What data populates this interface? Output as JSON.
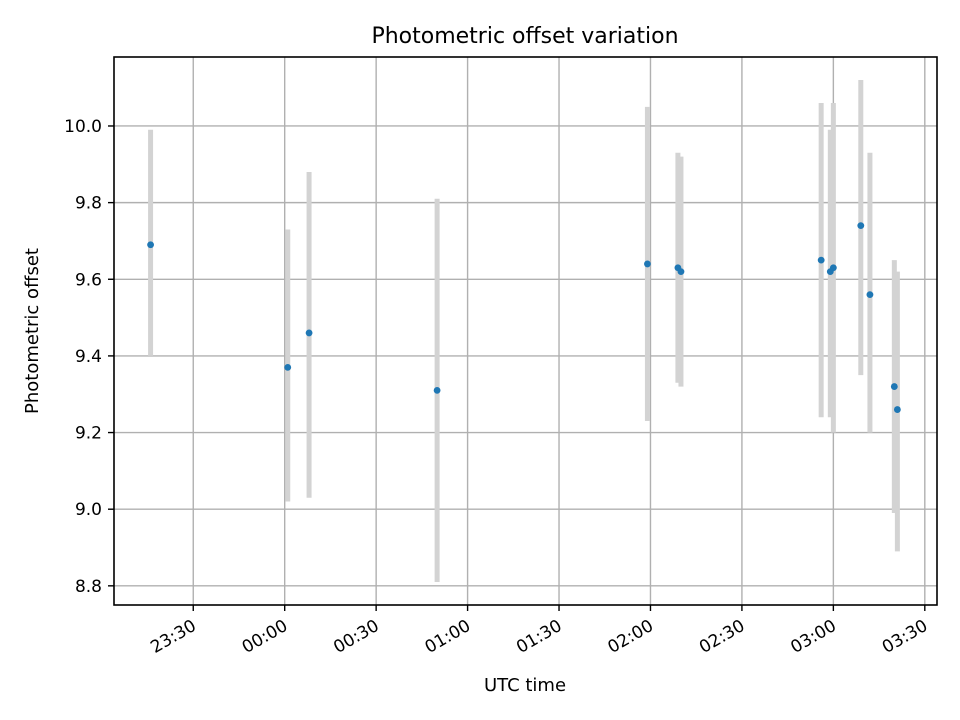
{
  "chart_data": {
    "type": "scatter",
    "title": "Photometric offset variation",
    "xlabel": "UTC time",
    "ylabel": "Photometric offset",
    "x_ticks": [
      "23:30",
      "00:00",
      "00:30",
      "01:00",
      "01:30",
      "02:00",
      "02:30",
      "03:00",
      "03:30"
    ],
    "y_ticks": [
      "8.8",
      "9.0",
      "9.2",
      "9.4",
      "9.6",
      "9.8",
      "10.0"
    ],
    "xlim": [
      "23:04",
      "03:34"
    ],
    "ylim": [
      8.75,
      10.18
    ],
    "grid": true,
    "colors": {
      "points": "#1f77b4",
      "error_bars": "#d3d3d3",
      "grid": "#b0b0b0"
    },
    "series": [
      {
        "points": [
          {
            "x": "23:16",
            "y": 9.69,
            "ylo": 9.4,
            "yhi": 9.99
          },
          {
            "x": "00:01",
            "y": 9.37,
            "ylo": 9.02,
            "yhi": 9.73
          },
          {
            "x": "00:08",
            "y": 9.46,
            "ylo": 9.03,
            "yhi": 9.88
          },
          {
            "x": "00:50",
            "y": 9.31,
            "ylo": 8.81,
            "yhi": 9.81
          },
          {
            "x": "01:59",
            "y": 9.64,
            "ylo": 9.23,
            "yhi": 10.05
          },
          {
            "x": "02:09",
            "y": 9.63,
            "ylo": 9.33,
            "yhi": 9.93
          },
          {
            "x": "02:10",
            "y": 9.62,
            "ylo": 9.32,
            "yhi": 9.92
          },
          {
            "x": "02:56",
            "y": 9.65,
            "ylo": 9.24,
            "yhi": 10.06
          },
          {
            "x": "02:59",
            "y": 9.62,
            "ylo": 9.24,
            "yhi": 9.99
          },
          {
            "x": "03:00",
            "y": 9.63,
            "ylo": 9.2,
            "yhi": 10.06
          },
          {
            "x": "03:09",
            "y": 9.74,
            "ylo": 9.35,
            "yhi": 10.12
          },
          {
            "x": "03:12",
            "y": 9.56,
            "ylo": 9.2,
            "yhi": 9.93
          },
          {
            "x": "03:20",
            "y": 9.32,
            "ylo": 8.99,
            "yhi": 9.65
          },
          {
            "x": "03:21",
            "y": 9.26,
            "ylo": 8.89,
            "yhi": 9.62
          }
        ]
      }
    ]
  }
}
